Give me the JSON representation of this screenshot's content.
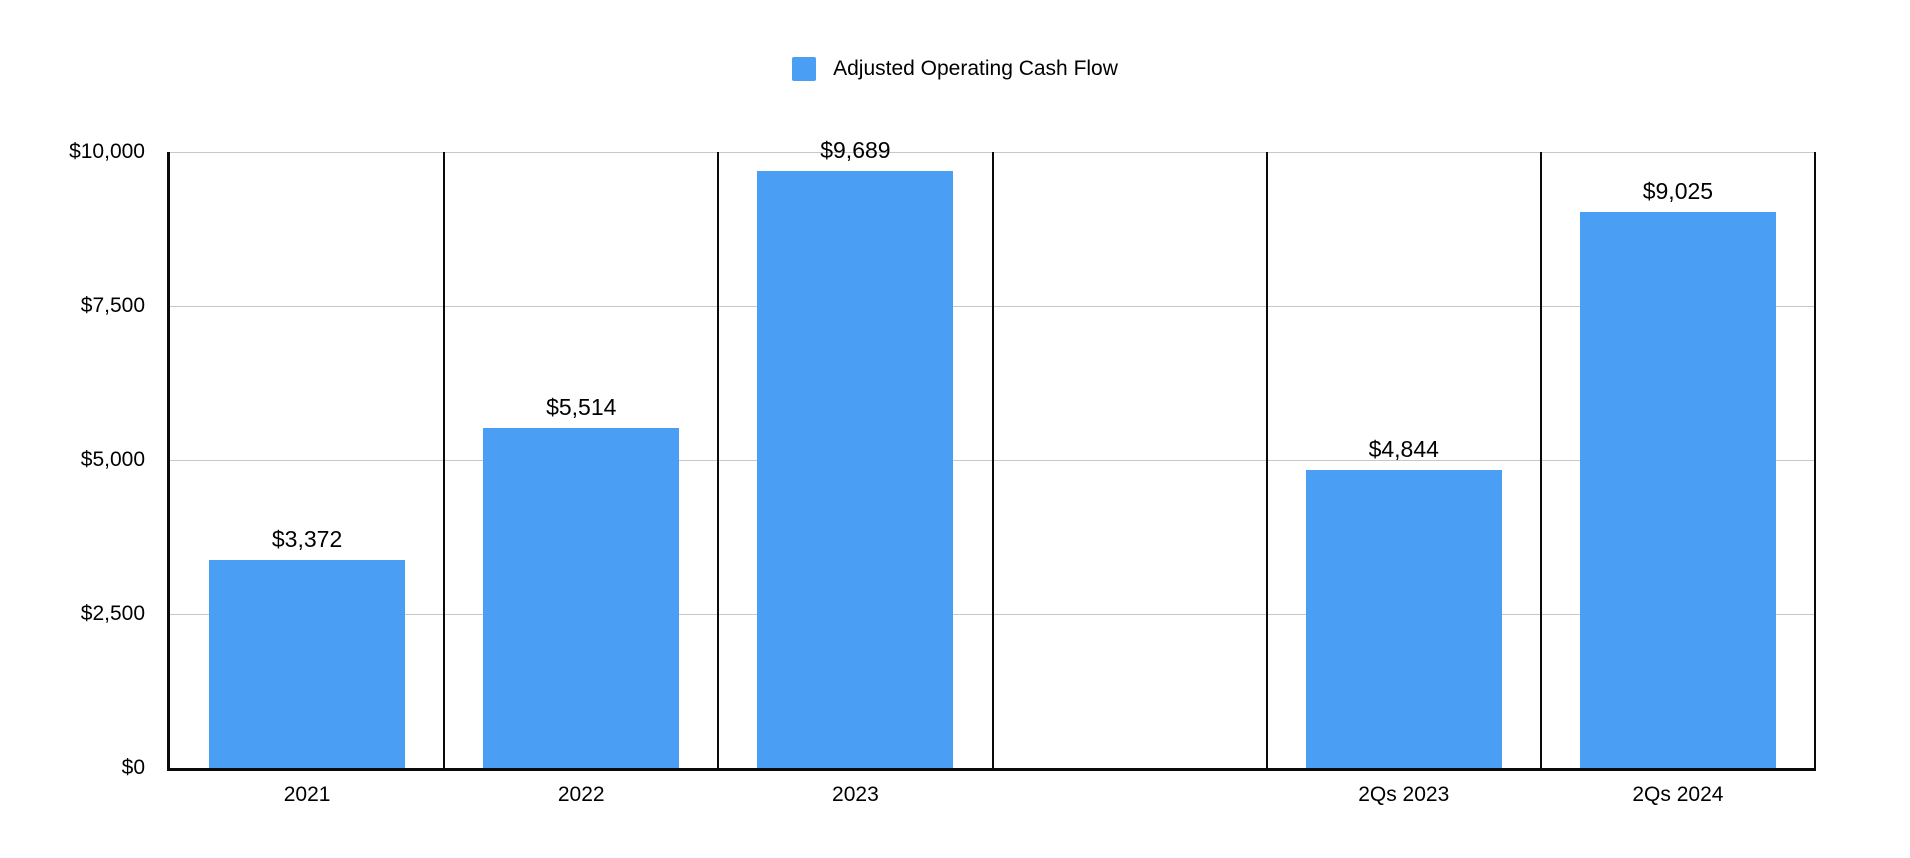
{
  "chart_data": {
    "type": "bar",
    "series_name": "Adjusted Operating Cash Flow",
    "categories": [
      "2021",
      "2022",
      "2023",
      "",
      "2Qs 2023",
      "2Qs 2024"
    ],
    "values": [
      3372,
      5514,
      9689,
      null,
      4844,
      9025
    ],
    "value_labels": [
      "$3,372",
      "$5,514",
      "$9,689",
      null,
      "$4,844",
      "$9,025"
    ],
    "title": "",
    "xlabel": "",
    "ylabel": "",
    "ylim": [
      0,
      10000
    ],
    "yticks": [
      0,
      2500,
      5000,
      7500,
      10000
    ],
    "ytick_labels": [
      "$0",
      "$2,500",
      "$5,000",
      "$7,500",
      "$10,000"
    ],
    "grid": "horizontal gridlines at labeled ticks, vertical black column borders",
    "legend_position": "top-center",
    "colors": {
      "bar": "#4A9FF5",
      "gridline": "#C8C8C8",
      "axis": "#0A0A0A",
      "text": "#000000",
      "background": "#FFFFFF"
    }
  }
}
